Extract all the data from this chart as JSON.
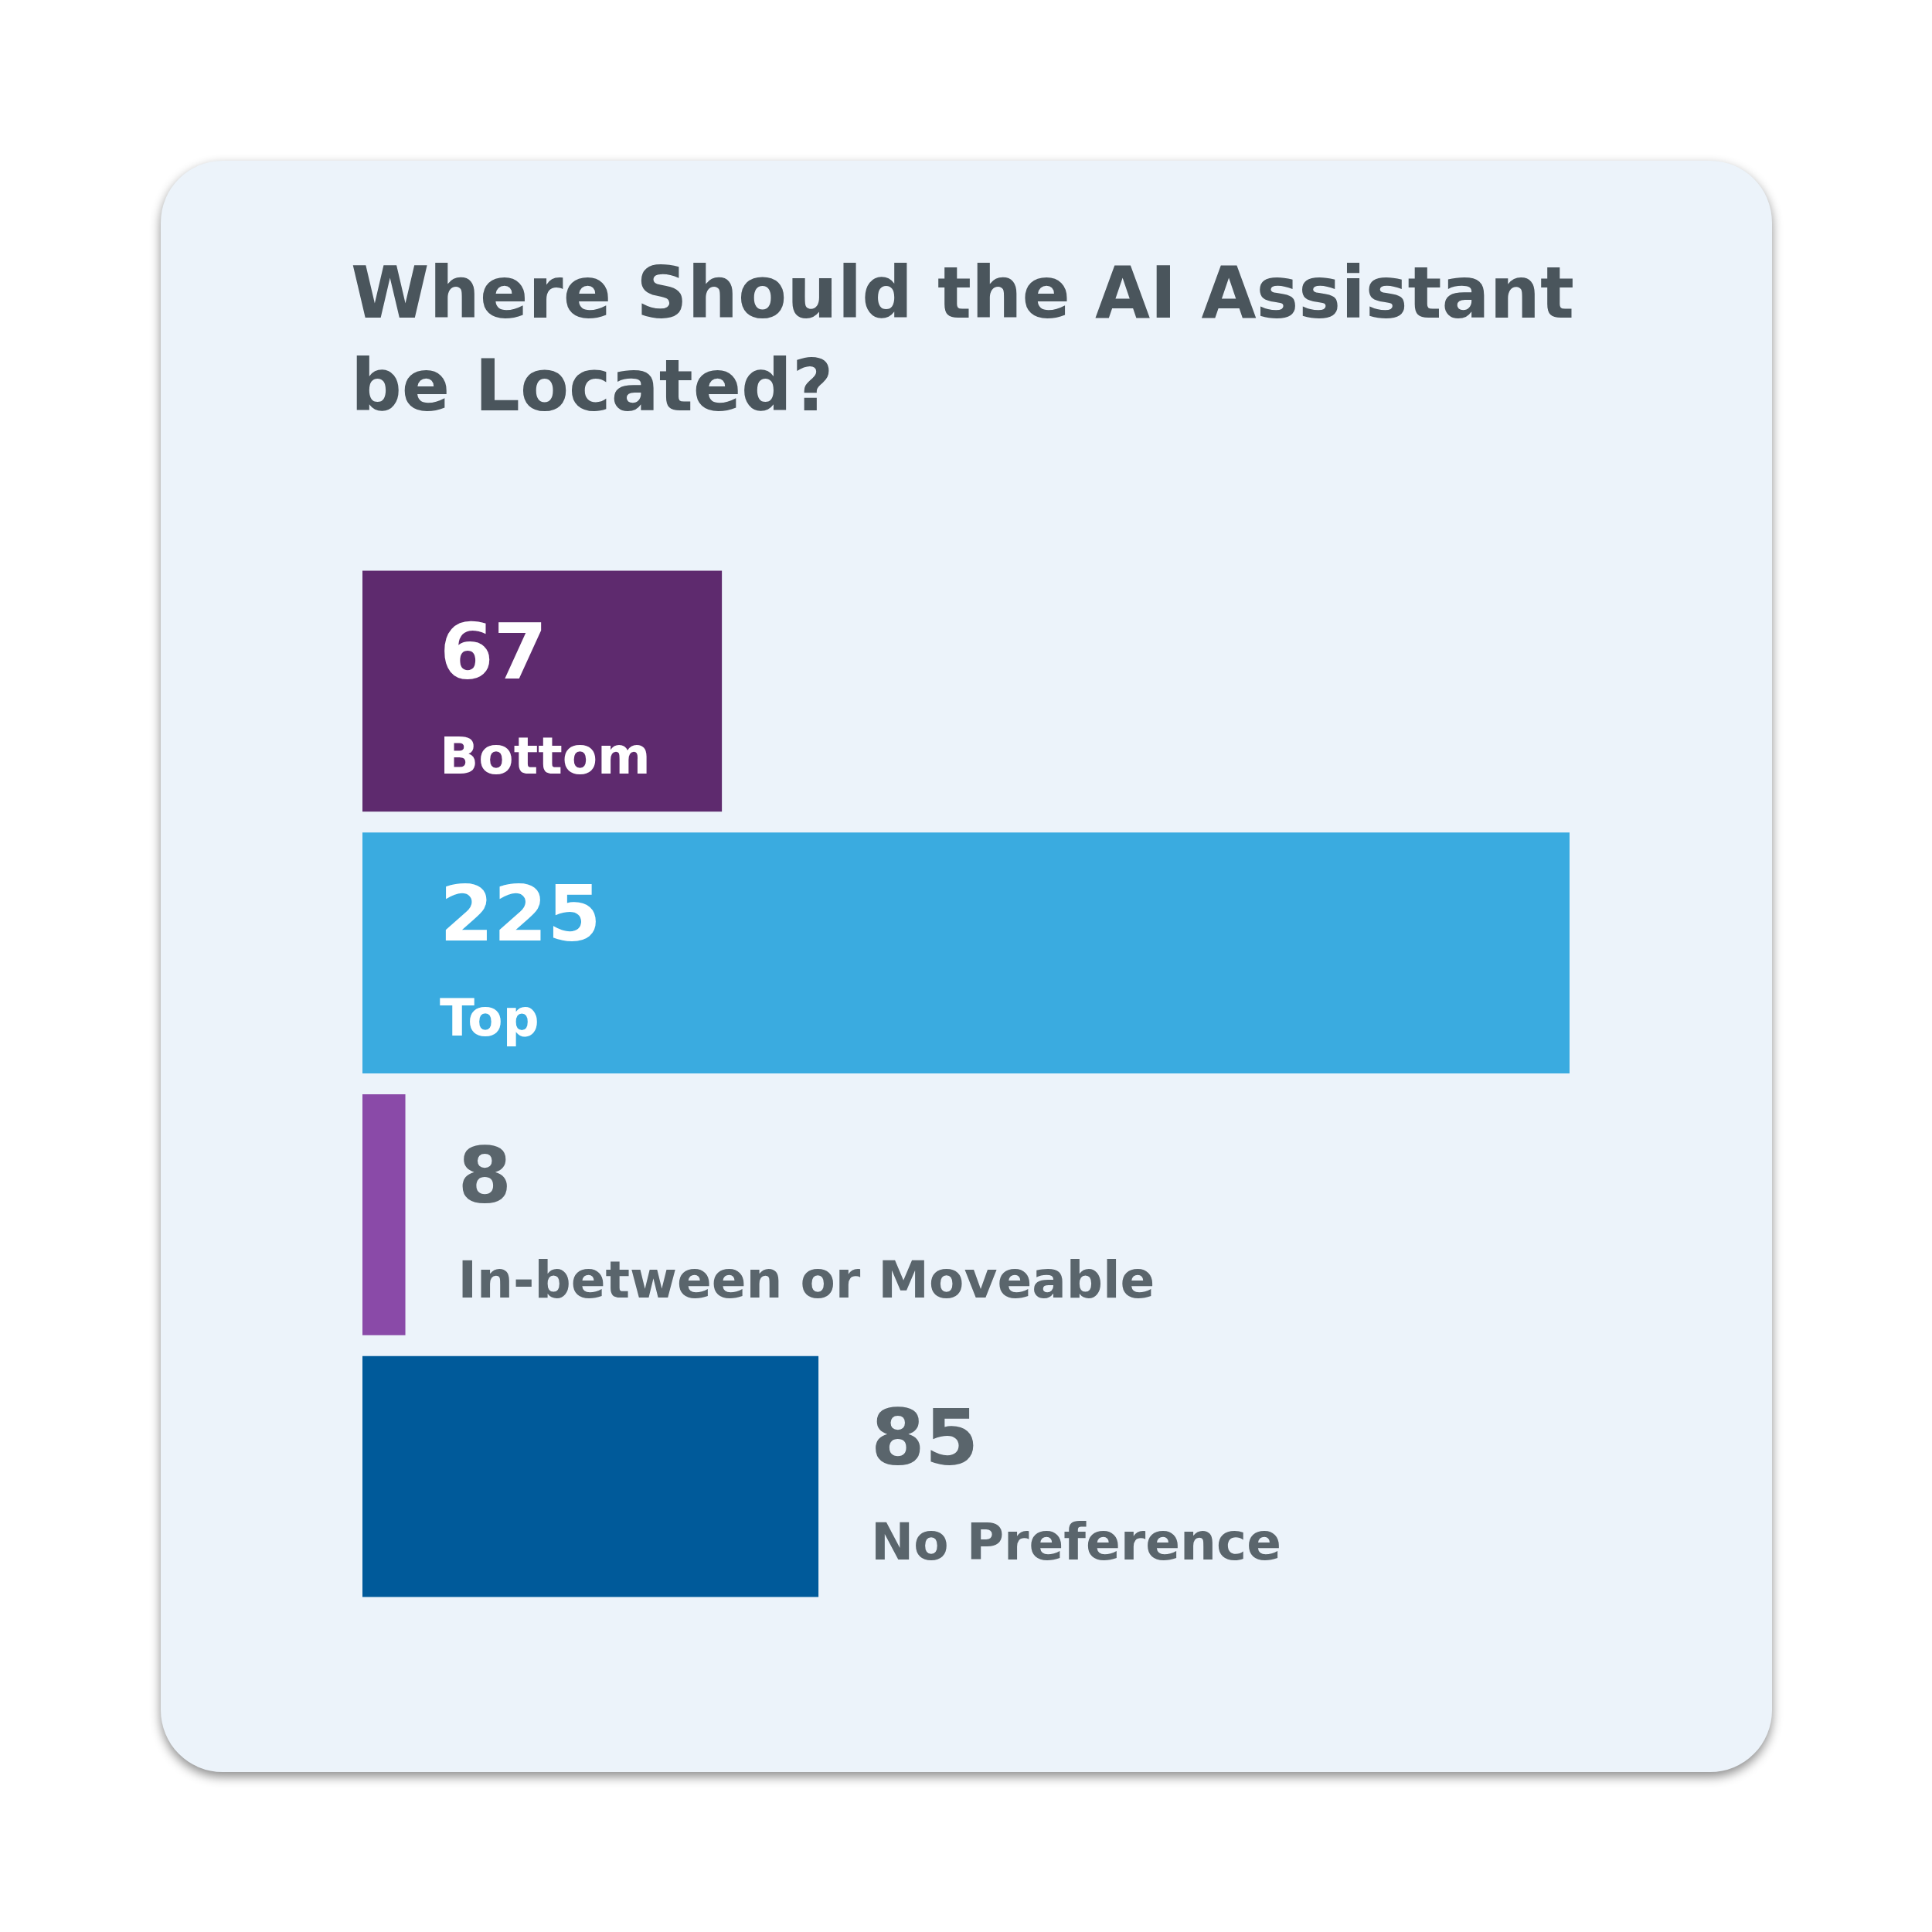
{
  "chart_data": {
    "type": "bar",
    "orientation": "horizontal",
    "title": "Where Should the AI Assistant be Located?",
    "categories": [
      "Bottom",
      "Top",
      "In-between or Moveable",
      "No Preference"
    ],
    "values": [
      67,
      225,
      8,
      85
    ],
    "colors": [
      "#5e2a6e",
      "#3aabe0",
      "#8a4aa8",
      "#005a9a"
    ],
    "data_labels": true,
    "legend": false
  }
}
